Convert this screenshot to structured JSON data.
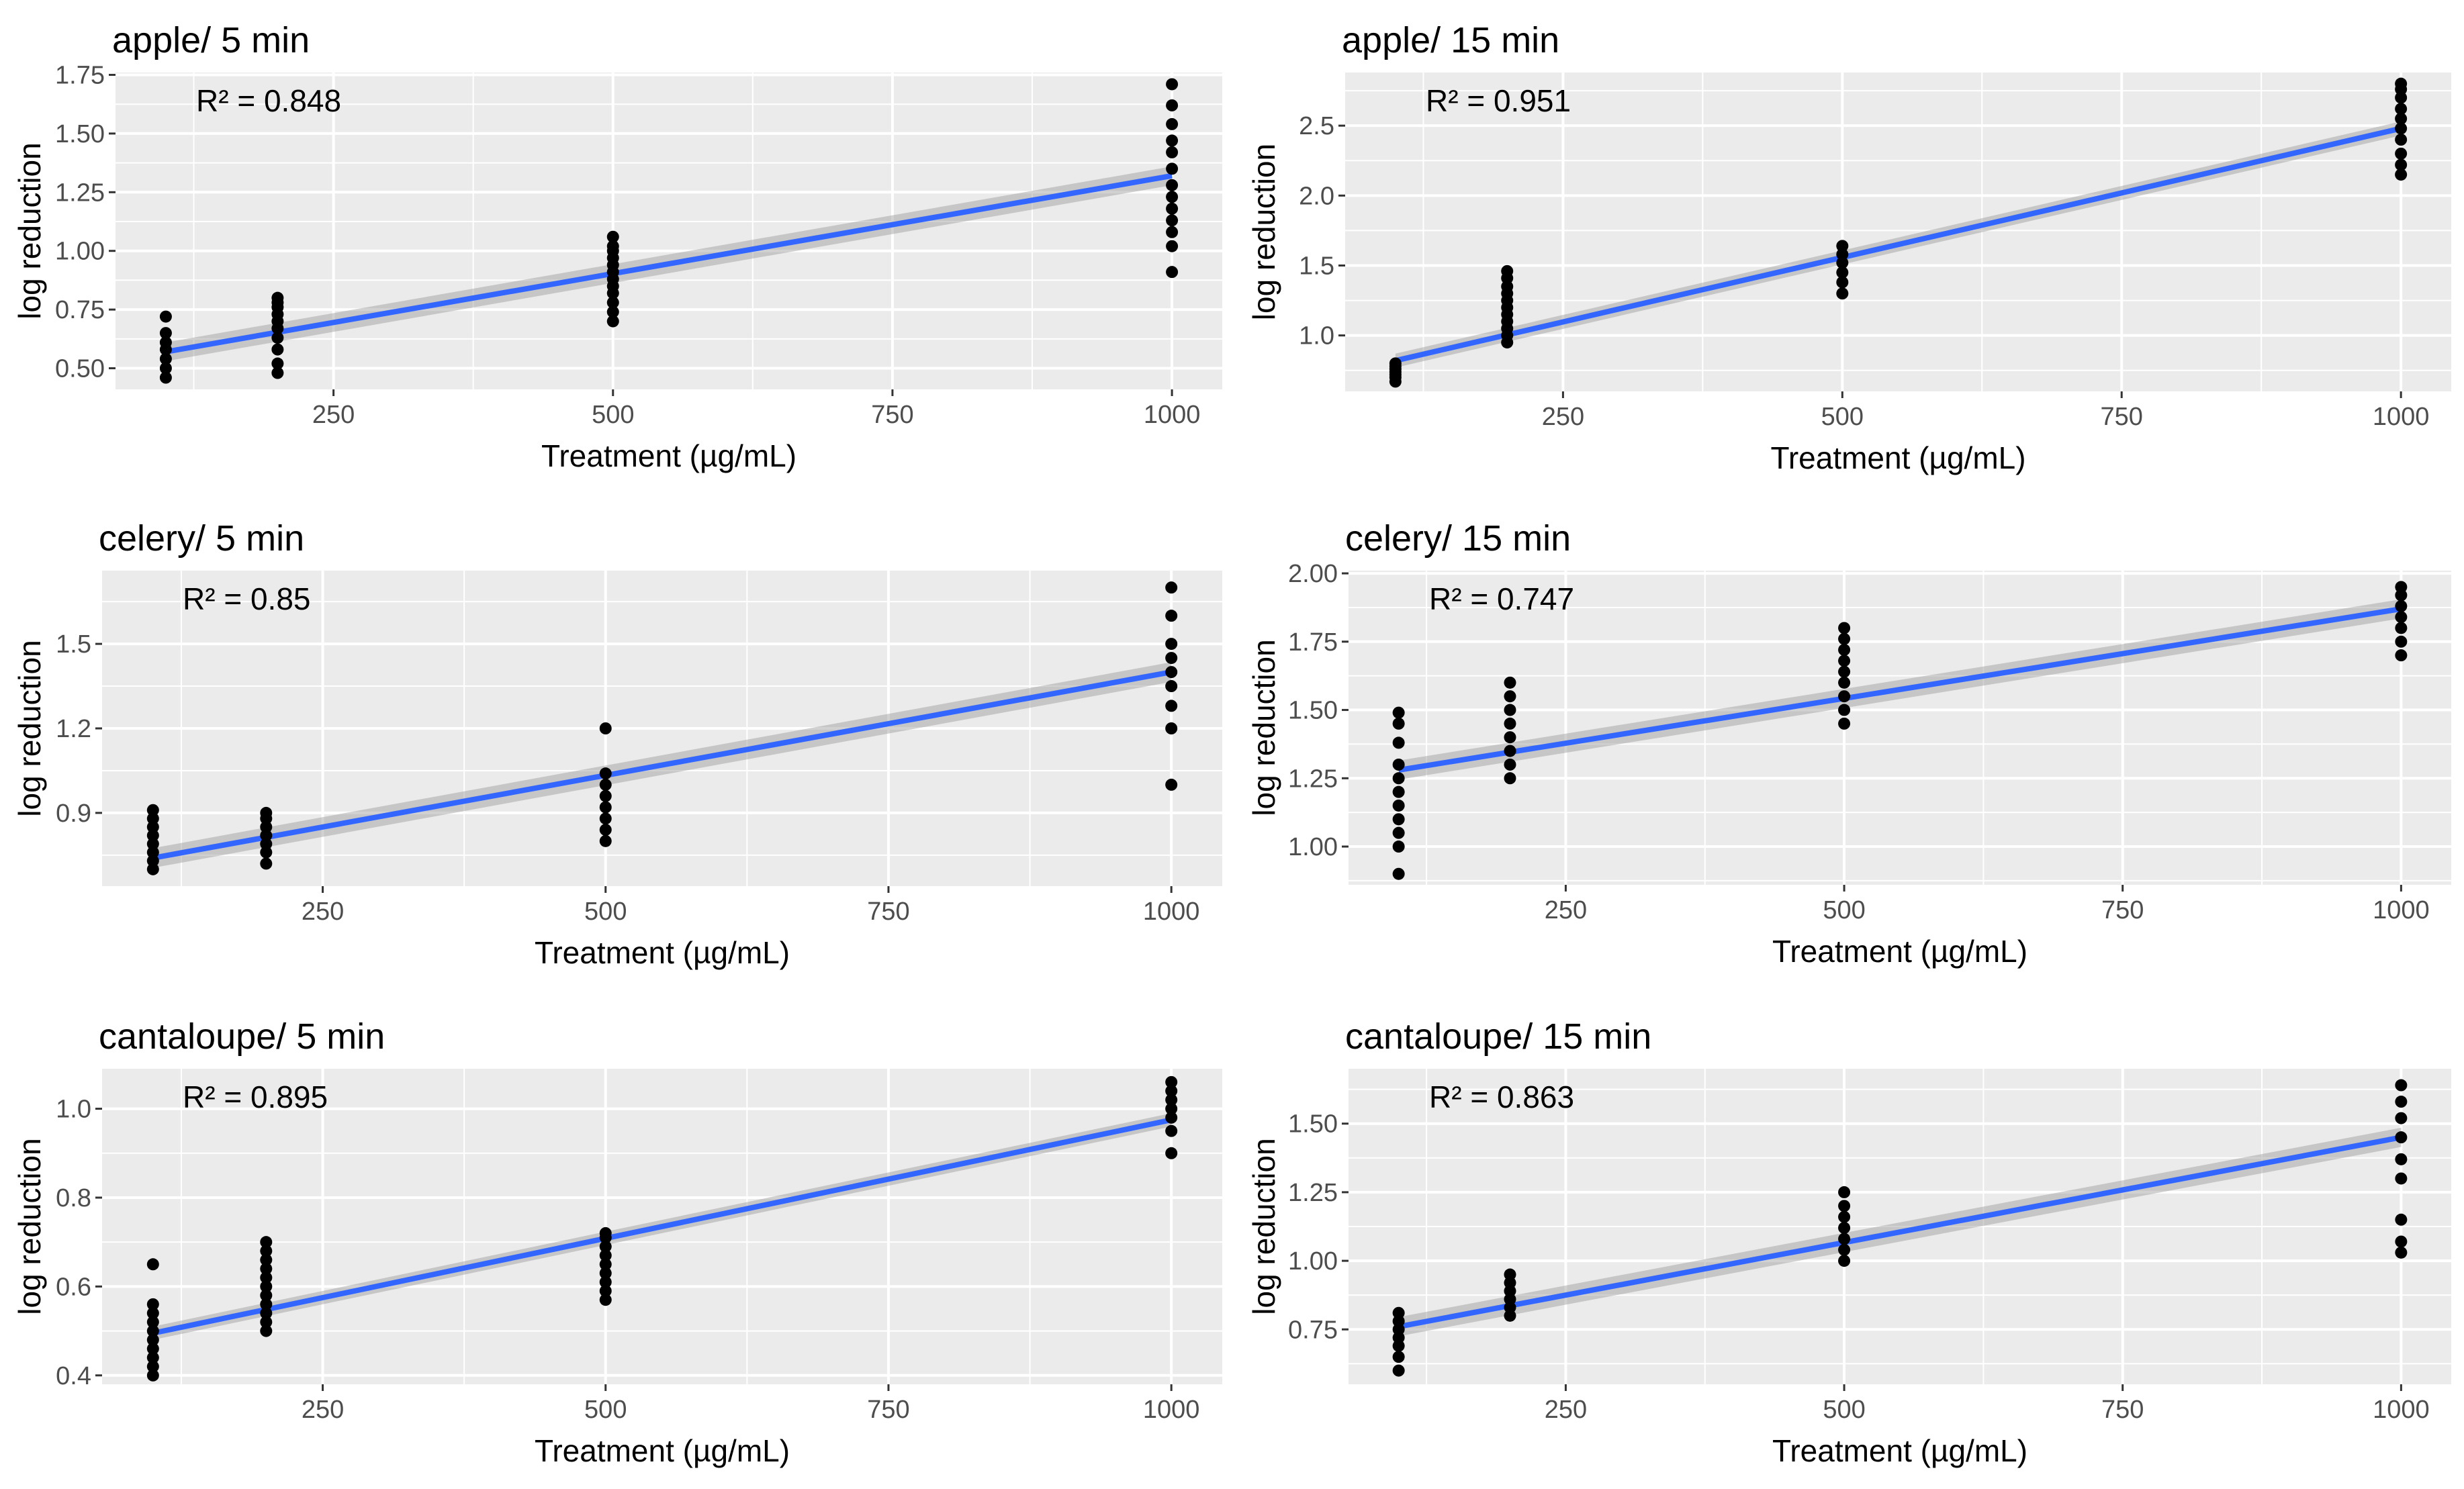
{
  "chart_data": [
    {
      "type": "scatter",
      "title": "apple/ 5 min",
      "annotation": "R² = 0.848",
      "xlabel": "Treatment (µg/mL)",
      "ylabel": "log reduction",
      "xlim": [
        55,
        1045
      ],
      "ylim": [
        0.41,
        1.76
      ],
      "x_ticks": [
        250,
        500,
        750,
        1000
      ],
      "x_tick_labels": [
        "250",
        "500",
        "750",
        "1000"
      ],
      "y_ticks": [
        0.5,
        0.75,
        1.0,
        1.25,
        1.5,
        1.75
      ],
      "y_tick_labels": [
        "0.50",
        "0.75",
        "1.00",
        "1.25",
        "1.50",
        "1.75"
      ],
      "fit": {
        "x": [
          100,
          1000
        ],
        "y": [
          0.57,
          1.32
        ],
        "ci": 0.04
      },
      "series": [
        {
          "x": 100,
          "y": [
            0.46,
            0.5,
            0.54,
            0.58,
            0.61,
            0.65,
            0.72
          ]
        },
        {
          "x": 200,
          "y": [
            0.48,
            0.52,
            0.58,
            0.63,
            0.67,
            0.7,
            0.73,
            0.76,
            0.78,
            0.8
          ]
        },
        {
          "x": 500,
          "y": [
            0.7,
            0.74,
            0.78,
            0.82,
            0.85,
            0.88,
            0.91,
            0.94,
            0.97,
            1.0,
            1.02,
            1.06
          ]
        },
        {
          "x": 1000,
          "y": [
            0.91,
            1.02,
            1.08,
            1.13,
            1.18,
            1.23,
            1.28,
            1.35,
            1.42,
            1.47,
            1.54,
            1.62,
            1.71
          ]
        }
      ]
    },
    {
      "type": "scatter",
      "title": "apple/ 15 min",
      "annotation": "R² = 0.951",
      "xlabel": "Treatment (µg/mL)",
      "ylabel": "log reduction",
      "xlim": [
        55,
        1045
      ],
      "ylim": [
        0.6,
        2.88
      ],
      "x_ticks": [
        250,
        500,
        750,
        1000
      ],
      "x_tick_labels": [
        "250",
        "500",
        "750",
        "1000"
      ],
      "y_ticks": [
        1.0,
        1.5,
        2.0,
        2.5
      ],
      "y_tick_labels": [
        "1.0",
        "1.5",
        "2.0",
        "2.5"
      ],
      "fit": {
        "x": [
          100,
          1000
        ],
        "y": [
          0.82,
          2.48
        ],
        "ci": 0.05
      },
      "series": [
        {
          "x": 100,
          "y": [
            0.67,
            0.7,
            0.72,
            0.74,
            0.76,
            0.78,
            0.8
          ]
        },
        {
          "x": 200,
          "y": [
            0.95,
            1.0,
            1.05,
            1.1,
            1.15,
            1.2,
            1.25,
            1.3,
            1.35,
            1.41,
            1.46
          ]
        },
        {
          "x": 500,
          "y": [
            1.3,
            1.38,
            1.45,
            1.52,
            1.58,
            1.64
          ]
        },
        {
          "x": 1000,
          "y": [
            2.15,
            2.22,
            2.3,
            2.4,
            2.48,
            2.55,
            2.62,
            2.7,
            2.76,
            2.8
          ]
        }
      ]
    },
    {
      "type": "scatter",
      "title": "celery/ 5 min",
      "annotation": "R² = 0.85",
      "xlabel": "Treatment (µg/mL)",
      "ylabel": "log reduction",
      "xlim": [
        55,
        1045
      ],
      "ylim": [
        0.64,
        1.76
      ],
      "x_ticks": [
        250,
        500,
        750,
        1000
      ],
      "x_tick_labels": [
        "250",
        "500",
        "750",
        "1000"
      ],
      "y_ticks": [
        0.9,
        1.2,
        1.5
      ],
      "y_tick_labels": [
        "0.9",
        "1.2",
        "1.5"
      ],
      "fit": {
        "x": [
          100,
          1000
        ],
        "y": [
          0.74,
          1.4
        ],
        "ci": 0.035
      },
      "series": [
        {
          "x": 100,
          "y": [
            0.7,
            0.73,
            0.76,
            0.79,
            0.82,
            0.85,
            0.88,
            0.91
          ]
        },
        {
          "x": 200,
          "y": [
            0.72,
            0.76,
            0.79,
            0.82,
            0.85,
            0.88,
            0.9
          ]
        },
        {
          "x": 500,
          "y": [
            0.8,
            0.84,
            0.88,
            0.92,
            0.96,
            1.0,
            1.04,
            1.2
          ]
        },
        {
          "x": 1000,
          "y": [
            1.0,
            1.2,
            1.28,
            1.35,
            1.4,
            1.45,
            1.5,
            1.6,
            1.7
          ]
        }
      ]
    },
    {
      "type": "scatter",
      "title": "celery/ 15 min",
      "annotation": "R² = 0.747",
      "xlabel": "Treatment (µg/mL)",
      "ylabel": "log reduction",
      "xlim": [
        55,
        1045
      ],
      "ylim": [
        0.86,
        2.01
      ],
      "x_ticks": [
        250,
        500,
        750,
        1000
      ],
      "x_tick_labels": [
        "250",
        "500",
        "750",
        "1000"
      ],
      "y_ticks": [
        1.0,
        1.25,
        1.5,
        1.75,
        2.0
      ],
      "y_tick_labels": [
        "1.00",
        "1.25",
        "1.50",
        "1.75",
        "2.00"
      ],
      "fit": {
        "x": [
          100,
          1000
        ],
        "y": [
          1.28,
          1.87
        ],
        "ci": 0.035
      },
      "series": [
        {
          "x": 100,
          "y": [
            0.9,
            1.0,
            1.05,
            1.1,
            1.15,
            1.2,
            1.25,
            1.3,
            1.38,
            1.45,
            1.49
          ]
        },
        {
          "x": 200,
          "y": [
            1.25,
            1.3,
            1.35,
            1.4,
            1.45,
            1.5,
            1.55,
            1.6
          ]
        },
        {
          "x": 500,
          "y": [
            1.45,
            1.5,
            1.55,
            1.6,
            1.64,
            1.68,
            1.72,
            1.76,
            1.8
          ]
        },
        {
          "x": 1000,
          "y": [
            1.7,
            1.75,
            1.8,
            1.84,
            1.88,
            1.92,
            1.95
          ]
        }
      ]
    },
    {
      "type": "scatter",
      "title": "cantaloupe/ 5 min",
      "annotation": "R² = 0.895",
      "xlabel": "Treatment (µg/mL)",
      "ylabel": "log reduction",
      "xlim": [
        55,
        1045
      ],
      "ylim": [
        0.38,
        1.09
      ],
      "x_ticks": [
        250,
        500,
        750,
        1000
      ],
      "x_tick_labels": [
        "250",
        "500",
        "750",
        "1000"
      ],
      "y_ticks": [
        0.4,
        0.6,
        0.8,
        1.0
      ],
      "y_tick_labels": [
        "0.4",
        "0.6",
        "0.8",
        "1.0"
      ],
      "fit": {
        "x": [
          100,
          1000
        ],
        "y": [
          0.495,
          0.975
        ],
        "ci": 0.015
      },
      "series": [
        {
          "x": 100,
          "y": [
            0.4,
            0.42,
            0.44,
            0.46,
            0.48,
            0.5,
            0.52,
            0.54,
            0.56,
            0.65
          ]
        },
        {
          "x": 200,
          "y": [
            0.5,
            0.52,
            0.54,
            0.56,
            0.58,
            0.6,
            0.62,
            0.64,
            0.66,
            0.68,
            0.7
          ]
        },
        {
          "x": 500,
          "y": [
            0.57,
            0.59,
            0.61,
            0.63,
            0.65,
            0.67,
            0.69,
            0.71,
            0.72
          ]
        },
        {
          "x": 1000,
          "y": [
            0.9,
            0.95,
            0.98,
            1.0,
            1.02,
            1.04,
            1.06
          ]
        }
      ]
    },
    {
      "type": "scatter",
      "title": "cantaloupe/ 15 min",
      "annotation": "R² = 0.863",
      "xlabel": "Treatment (µg/mL)",
      "ylabel": "log reduction",
      "xlim": [
        55,
        1045
      ],
      "ylim": [
        0.55,
        1.7
      ],
      "x_ticks": [
        250,
        500,
        750,
        1000
      ],
      "x_tick_labels": [
        "250",
        "500",
        "750",
        "1000"
      ],
      "y_ticks": [
        0.75,
        1.0,
        1.25,
        1.5
      ],
      "y_tick_labels": [
        "0.75",
        "1.00",
        "1.25",
        "1.50"
      ],
      "fit": {
        "x": [
          100,
          1000
        ],
        "y": [
          0.76,
          1.45
        ],
        "ci": 0.035
      },
      "series": [
        {
          "x": 100,
          "y": [
            0.6,
            0.65,
            0.69,
            0.72,
            0.75,
            0.78,
            0.81
          ]
        },
        {
          "x": 200,
          "y": [
            0.8,
            0.83,
            0.86,
            0.89,
            0.92,
            0.95
          ]
        },
        {
          "x": 500,
          "y": [
            1.0,
            1.04,
            1.08,
            1.12,
            1.16,
            1.2,
            1.25
          ]
        },
        {
          "x": 1000,
          "y": [
            1.03,
            1.07,
            1.15,
            1.3,
            1.37,
            1.45,
            1.52,
            1.58,
            1.64
          ]
        }
      ]
    }
  ]
}
